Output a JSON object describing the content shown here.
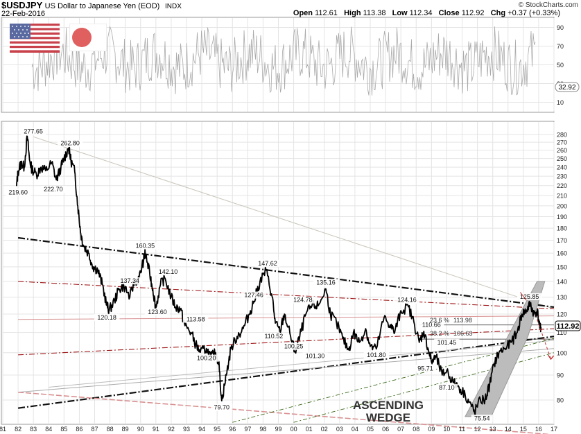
{
  "header": {
    "symbol": "$USDJPY",
    "description": "US Dollar to Japanese Yen (EOD)",
    "index_tag": "INDX",
    "date": "22-Feb-2016",
    "source": "© StockCharts.com",
    "open_label": "Open",
    "open": "112.61",
    "high_label": "High",
    "high": "113.38",
    "low_label": "Low",
    "low": "112.34",
    "close_label": "Close",
    "close": "112.92",
    "chg_label": "Chg",
    "chg": "+0.37 (+0.33%)"
  },
  "flags": {
    "left": "us-flag-icon",
    "right": "japan-flag-icon"
  },
  "chart_data": [
    {
      "type": "line",
      "name": "oscillator",
      "yticks": [
        10,
        30,
        50,
        70,
        90
      ],
      "ylim": [
        0,
        100
      ],
      "last_value": "32.92"
    },
    {
      "type": "line",
      "name": "price",
      "x_ticks": [
        "81",
        "82",
        "83",
        "84",
        "85",
        "86",
        "87",
        "88",
        "89",
        "90",
        "91",
        "92",
        "93",
        "94",
        "95",
        "96",
        "97",
        "98",
        "99",
        "00",
        "01",
        "02",
        "03",
        "04",
        "05",
        "06",
        "07",
        "08",
        "09",
        "10",
        "11",
        "12",
        "13",
        "14",
        "15",
        "16",
        "17"
      ],
      "y_ticks": [
        80,
        90,
        100,
        110,
        120,
        130,
        140,
        150,
        160,
        170,
        180,
        190,
        200,
        210,
        220,
        230,
        240,
        250,
        260,
        270,
        280
      ],
      "x_range": [
        1981.0,
        2017.0
      ],
      "ylim": [
        75,
        285
      ],
      "log_scale": true,
      "grid": true,
      "last_price": "112.92",
      "series": [
        {
          "x": [
            1981.9,
            1982.0,
            1982.2,
            1982.4,
            1982.6,
            1982.75,
            1982.9,
            1983.2,
            1983.5,
            1983.8,
            1984.2,
            1984.5,
            1984.8,
            1985.0,
            1985.3,
            1985.45,
            1985.7,
            1985.9,
            1986.1,
            1986.3,
            1986.6,
            1986.9,
            1987.2,
            1987.5,
            1987.8,
            1987.95,
            1988.3,
            1988.6,
            1988.9,
            1989.3,
            1989.6,
            1989.9,
            1990.2,
            1990.3,
            1990.6,
            1990.8,
            1991.0,
            1991.3,
            1991.6,
            1992.0,
            1992.3,
            1992.6,
            1992.9,
            1993.3,
            1993.6,
            1993.9,
            1994.3,
            1994.6,
            1994.9,
            1995.1,
            1995.3,
            1995.6,
            1995.9,
            1996.3,
            1996.7,
            1997.1,
            1997.4,
            1997.8,
            1998.2,
            1998.6,
            1998.8,
            1999.1,
            1999.4,
            1999.8,
            2000.1,
            2000.4,
            2000.8,
            2001.2,
            2001.6,
            2002.1,
            2002.4,
            2002.8,
            2003.2,
            2003.6,
            2003.9,
            2004.3,
            2004.7,
            2005.0,
            2005.4,
            2005.9,
            2006.3,
            2006.6,
            2007.0,
            2007.5,
            2007.9,
            2008.2,
            2008.5,
            2008.8,
            2009.0,
            2009.3,
            2009.7,
            2010.0,
            2010.4,
            2010.8,
            2011.2,
            2011.6,
            2011.8,
            2012.2,
            2012.5,
            2012.8,
            2013.1,
            2013.4,
            2013.8,
            2014.2,
            2014.6,
            2014.9,
            2015.2,
            2015.45,
            2015.7,
            2015.9,
            2016.1,
            2016.15
          ],
          "y": [
            219.6,
            235,
            245,
            240,
            277.65,
            248,
            238,
            232,
            240,
            236,
            245,
            226,
            240,
            250,
            262.8,
            248,
            235,
            200,
            175,
            165,
            160,
            150,
            148,
            138,
            125,
            122,
            128,
            135,
            137.34,
            130,
            140,
            142,
            155,
            160.35,
            145,
            135,
            123.6,
            138,
            142.1,
            130,
            124,
            123,
            113.58,
            110,
            104,
            100.2,
            102,
            98,
            100,
            96,
            79.7,
            90,
            102,
            108,
            112,
            120,
            127.46,
            140,
            147.62,
            130,
            115,
            110.52,
            120,
            108,
            100.25,
            108,
            120,
            125,
            124.78,
            135.16,
            120,
            115,
            107,
            101.3,
            110,
            105,
            112,
            103,
            101.8,
            118,
            114,
            110,
            122,
            124.16,
            114,
            105,
            110.66,
            101.45,
            95.71,
            98,
            90,
            92,
            87.1,
            85,
            82,
            78,
            75.54,
            80,
            80,
            86,
            95,
            100,
            102,
            105,
            110,
            120,
            122,
            125.85,
            120,
            122,
            112,
            112.92
          ]
        }
      ],
      "annotations": [
        "277.65",
        "219.60",
        "262.80",
        "222.70",
        "160.35",
        "137.34",
        "142.10",
        "120.18",
        "123.60",
        "113.58",
        "100.20",
        "79.70",
        "127.46",
        "147.62",
        "124.78",
        "110.52",
        "100.25",
        "101.30",
        "135.16",
        "124.16",
        "101.80",
        "110.66",
        "101.45",
        "95.71",
        "87.10",
        "75.54",
        "125.85"
      ],
      "fib_labels": [
        {
          "text": "23.6 %",
          "value": "113.98"
        },
        {
          "text": "38.2 %",
          "value": "106.63"
        }
      ],
      "pattern_label_line1": "ASCENDING",
      "pattern_label_line2": "WEDGE"
    }
  ],
  "colors": {
    "price": "#000000",
    "oscillator": "#aaaaaa",
    "grid": "#e4e4e4",
    "red_trend": "#a01818",
    "pink_trend": "#d89090",
    "green_trend": "#3a6a1a",
    "wedge_fill": "#bcbcbc",
    "dark_line": "#000000"
  }
}
